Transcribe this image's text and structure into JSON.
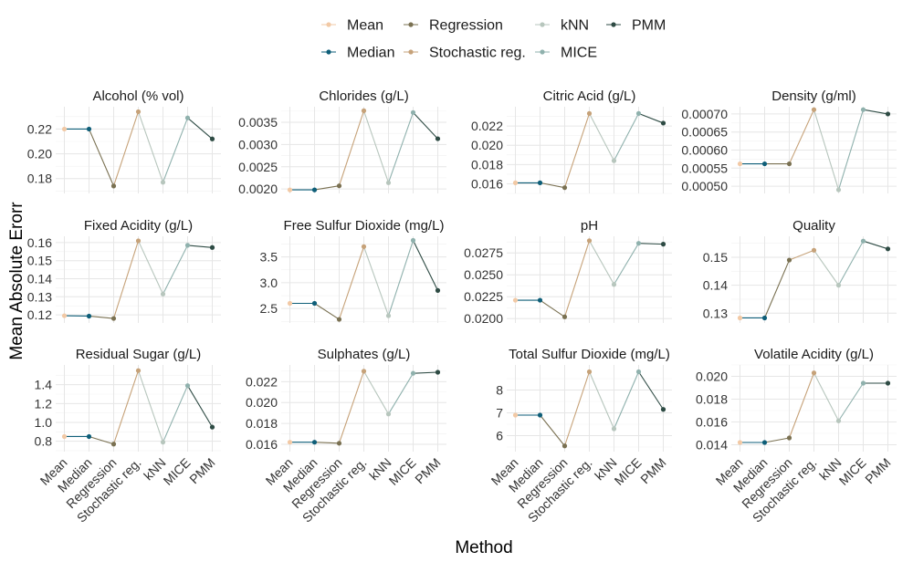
{
  "x_axis_title": "Method",
  "y_axis_title": "Mean Absolute Erorr",
  "methods": [
    "Mean",
    "Median",
    "Regression",
    "Stochastic reg.",
    "kNN",
    "MICE",
    "PMM"
  ],
  "colors": [
    "#f2c9a5",
    "#0e5e78",
    "#7a7152",
    "#c6a279",
    "#b7c6bd",
    "#8fb1ad",
    "#2e4b44"
  ],
  "legend": {
    "row1": [
      "Mean",
      "Regression",
      "kNN",
      "PMM"
    ],
    "row2": [
      "Median",
      "Stochastic reg.",
      "MICE"
    ]
  },
  "chart_data": [
    {
      "type": "line",
      "title": "Alcohol (% vol)",
      "categories": [
        "Mean",
        "Median",
        "Regression",
        "Stochastic reg.",
        "kNN",
        "MICE",
        "PMM"
      ],
      "values": [
        0.22,
        0.22,
        0.174,
        0.234,
        0.177,
        0.229,
        0.212
      ],
      "ylim": [
        0.168,
        0.238
      ],
      "yticks": [
        0.18,
        0.2,
        0.22
      ],
      "ytick_labels": [
        "0.18",
        "0.20",
        "0.22"
      ]
    },
    {
      "type": "line",
      "title": "Chlorides (g/L)",
      "categories": [
        "Mean",
        "Median",
        "Regression",
        "Stochastic reg.",
        "kNN",
        "MICE",
        "PMM"
      ],
      "values": [
        0.00198,
        0.00198,
        0.00207,
        0.00376,
        0.00214,
        0.00372,
        0.00313
      ],
      "ylim": [
        0.0019,
        0.00385
      ],
      "yticks": [
        0.002,
        0.0025,
        0.003,
        0.0035
      ],
      "ytick_labels": [
        "0.0020",
        "0.0025",
        "0.0030",
        "0.0035"
      ]
    },
    {
      "type": "line",
      "title": "Citric Acid (g/L)",
      "categories": [
        "Mean",
        "Median",
        "Regression",
        "Stochastic reg.",
        "kNN",
        "MICE",
        "PMM"
      ],
      "values": [
        0.0161,
        0.0161,
        0.0156,
        0.0233,
        0.0184,
        0.0233,
        0.0223
      ],
      "ylim": [
        0.015,
        0.024
      ],
      "yticks": [
        0.016,
        0.018,
        0.02,
        0.022
      ],
      "ytick_labels": [
        "0.016",
        "0.018",
        "0.020",
        "0.022"
      ]
    },
    {
      "type": "line",
      "title": "Density (g/ml)",
      "categories": [
        "Mean",
        "Median",
        "Regression",
        "Stochastic reg.",
        "kNN",
        "MICE",
        "PMM"
      ],
      "values": [
        0.000562,
        0.000562,
        0.000562,
        0.000712,
        0.00049,
        0.000712,
        0.0007
      ],
      "ylim": [
        0.00048,
        0.00072
      ],
      "yticks": [
        0.0005,
        0.00055,
        0.0006,
        0.00065,
        0.0007
      ],
      "ytick_labels": [
        "0.00050",
        "0.00055",
        "0.00060",
        "0.00065",
        "0.00070"
      ]
    },
    {
      "type": "line",
      "title": "Fixed Acidity (g/L)",
      "categories": [
        "Mean",
        "Median",
        "Regression",
        "Stochastic reg.",
        "kNN",
        "MICE",
        "PMM"
      ],
      "values": [
        0.1195,
        0.1193,
        0.118,
        0.161,
        0.1315,
        0.1585,
        0.1573
      ],
      "ylim": [
        0.1155,
        0.1635
      ],
      "yticks": [
        0.12,
        0.13,
        0.14,
        0.15,
        0.16
      ],
      "ytick_labels": [
        "0.12",
        "0.13",
        "0.14",
        "0.15",
        "0.16"
      ]
    },
    {
      "type": "line",
      "title": "Free Sulfur Dioxide (mg/L)",
      "categories": [
        "Mean",
        "Median",
        "Regression",
        "Stochastic reg.",
        "kNN",
        "MICE",
        "PMM"
      ],
      "values": [
        2.6,
        2.6,
        2.29,
        3.7,
        2.36,
        3.82,
        2.85
      ],
      "ylim": [
        2.22,
        3.9
      ],
      "yticks": [
        2.5,
        3.0,
        3.5
      ],
      "ytick_labels": [
        "2.5",
        "3.0",
        "3.5"
      ]
    },
    {
      "type": "line",
      "title": "pH",
      "categories": [
        "Mean",
        "Median",
        "Regression",
        "Stochastic reg.",
        "kNN",
        "MICE",
        "PMM"
      ],
      "values": [
        0.0221,
        0.0221,
        0.0202,
        0.0289,
        0.0239,
        0.0286,
        0.0285
      ],
      "ylim": [
        0.0195,
        0.0294
      ],
      "yticks": [
        0.02,
        0.0225,
        0.025,
        0.0275
      ],
      "ytick_labels": [
        "0.0200",
        "0.0225",
        "0.0250",
        "0.0275"
      ]
    },
    {
      "type": "line",
      "title": "Quality",
      "categories": [
        "Mean",
        "Median",
        "Regression",
        "Stochastic reg.",
        "kNN",
        "MICE",
        "PMM"
      ],
      "values": [
        0.1283,
        0.1283,
        0.149,
        0.1525,
        0.14,
        0.1558,
        0.153
      ],
      "ylim": [
        0.1265,
        0.1575
      ],
      "yticks": [
        0.13,
        0.14,
        0.15
      ],
      "ytick_labels": [
        "0.13",
        "0.14",
        "0.15"
      ]
    },
    {
      "type": "line",
      "title": "Residual Sugar (g/L)",
      "categories": [
        "Mean",
        "Median",
        "Regression",
        "Stochastic reg.",
        "kNN",
        "MICE",
        "PMM"
      ],
      "values": [
        0.85,
        0.85,
        0.77,
        1.55,
        0.79,
        1.39,
        0.95
      ],
      "ylim": [
        0.69,
        1.61
      ],
      "yticks": [
        0.8,
        1.0,
        1.2,
        1.4
      ],
      "ytick_labels": [
        "0.8",
        "1.0",
        "1.2",
        "1.4"
      ]
    },
    {
      "type": "line",
      "title": "Sulphates (g/L)",
      "categories": [
        "Mean",
        "Median",
        "Regression",
        "Stochastic reg.",
        "kNN",
        "MICE",
        "PMM"
      ],
      "values": [
        0.0162,
        0.0162,
        0.0161,
        0.023,
        0.0189,
        0.0228,
        0.0229
      ],
      "ylim": [
        0.0153,
        0.0236
      ],
      "yticks": [
        0.016,
        0.018,
        0.02,
        0.022
      ],
      "ytick_labels": [
        "0.016",
        "0.018",
        "0.020",
        "0.022"
      ]
    },
    {
      "type": "line",
      "title": "Total Sulfur Dioxide (mg/L)",
      "categories": [
        "Mean",
        "Median",
        "Regression",
        "Stochastic reg.",
        "kNN",
        "MICE",
        "PMM"
      ],
      "values": [
        6.9,
        6.9,
        5.55,
        8.8,
        6.3,
        8.8,
        7.15
      ],
      "ylim": [
        5.3,
        9.1
      ],
      "yticks": [
        6,
        7,
        8
      ],
      "ytick_labels": [
        "6",
        "7",
        "8"
      ]
    },
    {
      "type": "line",
      "title": "Volatile Acidity (g/L)",
      "categories": [
        "Mean",
        "Median",
        "Regression",
        "Stochastic reg.",
        "kNN",
        "MICE",
        "PMM"
      ],
      "values": [
        0.0142,
        0.0142,
        0.0146,
        0.0203,
        0.0161,
        0.0194,
        0.0194
      ],
      "ylim": [
        0.0134,
        0.021
      ],
      "yticks": [
        0.014,
        0.016,
        0.018,
        0.02
      ],
      "ytick_labels": [
        "0.014",
        "0.016",
        "0.018",
        "0.020"
      ]
    }
  ]
}
